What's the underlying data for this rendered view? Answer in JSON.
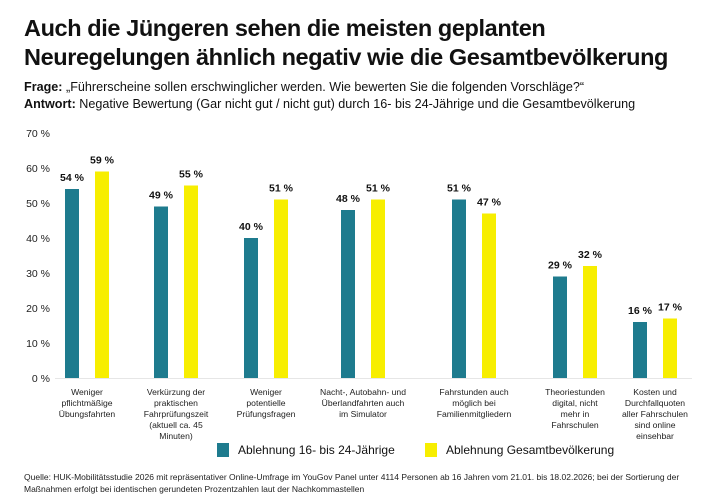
{
  "header": {
    "title": "Auch die Jüngeren sehen die meisten geplanten Neuregelungen ähnlich negativ wie die Gesamtbevölkerung",
    "question_label": "Frage:",
    "question": "„Führerscheine sollen erschwinglicher werden. Wie bewerten Sie die folgenden Vorschläge?“",
    "answer_label": "Antwort:",
    "answer": "Negative Bewertung (Gar nicht gut / nicht gut) durch 16- bis 24-Jährige und die Gesamtbevölkerung"
  },
  "chart_data": {
    "type": "bar",
    "ylim": [
      0,
      70
    ],
    "yticks": [
      "0 %",
      "10 %",
      "20 %",
      "30 %",
      "40 %",
      "50 %",
      "60 %",
      "70 %"
    ],
    "grid": false,
    "legend_position": "bottom",
    "categories": [
      "Weniger pflichtmäßige Übungsfahrten",
      "Verkürzung der praktischen Fahrprüfungszeit (aktuell ca. 45 Minuten)",
      "Weniger potentielle Prüfungsfragen",
      "Nacht-, Autobahn- und Überlandfahrten auch im Simulator",
      "Fahrstunden auch möglich bei Familienmitgliedern",
      "Theoriestunden digital, nicht mehr in Fahrschulen",
      "Kosten und Durchfallquoten aller Fahrschulen sind online einsehbar"
    ],
    "series": [
      {
        "name": "Ablehnung 16- bis 24-Jährige",
        "color": "#1e7b8e",
        "values": [
          54,
          49,
          40,
          48,
          51,
          29,
          16
        ],
        "labels": [
          "54 %",
          "49 %",
          "40 %",
          "48 %",
          "51 %",
          "29 %",
          "16 %"
        ]
      },
      {
        "name": "Ablehnung Gesamtbevölkerung",
        "color": "#f7ee00",
        "values": [
          59,
          55,
          51,
          51,
          47,
          32,
          17
        ],
        "labels": [
          "59 %",
          "55 %",
          "51 %",
          "51 %",
          "47 %",
          "32 %",
          "17 %"
        ]
      }
    ]
  },
  "footer": {
    "source": "Quelle: HUK-Mobilitätsstudie 2026 mit repräsentativer Online-Umfrage im YouGov Panel unter 4114 Personen ab 16 Jahren vom 21.01. bis 18.02.2026; bei der Sortierung der Maßnahmen erfolgt bei identischen gerundeten Prozentzahlen laut der Nachkommastellen"
  }
}
